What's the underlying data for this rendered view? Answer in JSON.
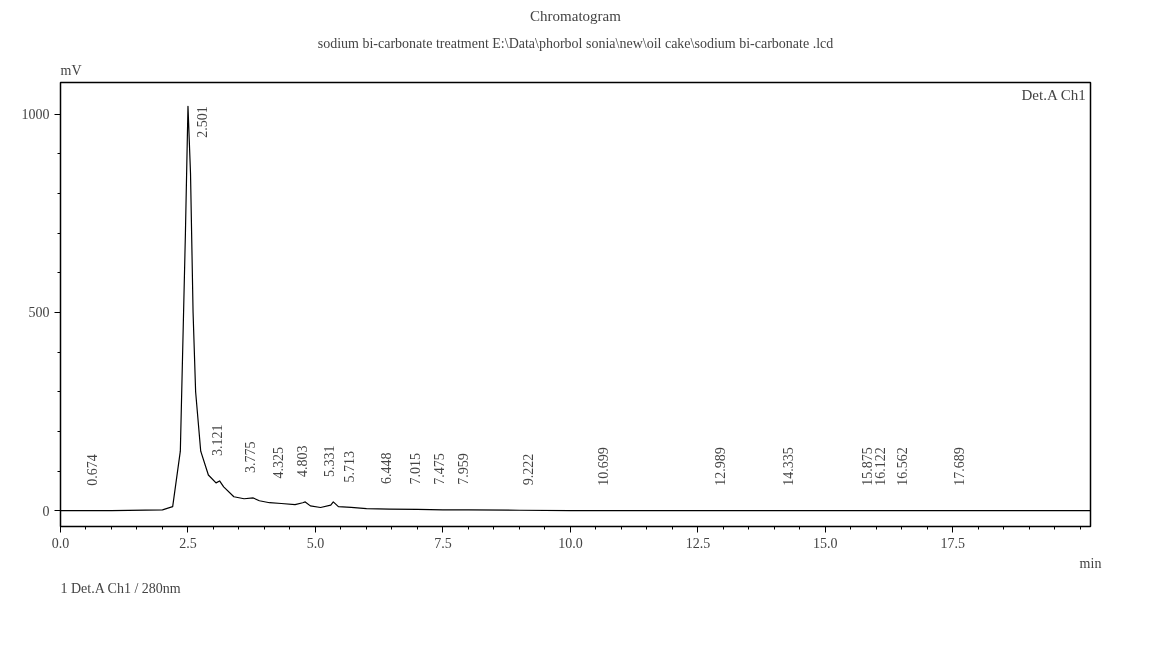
{
  "chart_data": {
    "type": "line",
    "title": "Chromatogram",
    "subtitle": "sodium bi-carbonate treatment E:\\Data\\phorbol sonia\\new\\oil cake\\sodium bi-carbonate .lcd",
    "xlabel": "min",
    "ylabel": "mV",
    "xlim": [
      0,
      20.2
    ],
    "xticks": [
      {
        "value": 0,
        "label": "0.0"
      },
      2.5,
      {
        "value": 5,
        "label": "5.0"
      },
      7.5,
      {
        "value": 10,
        "label": "10.0"
      },
      12.5,
      {
        "value": 15,
        "label": "15.0"
      },
      17.5
    ],
    "ylim": [
      -40,
      1080
    ],
    "yticks": [
      0,
      500,
      1000
    ],
    "grid": false,
    "marker": "none",
    "line_style": "solid",
    "series": [
      {
        "color": "#000000",
        "x": [
          0,
          1.0,
          2.0,
          2.2,
          2.35,
          2.45,
          2.5,
          2.55,
          2.6,
          2.65,
          2.75,
          2.9,
          3.05,
          3.12,
          3.2,
          3.4,
          3.6,
          3.78,
          3.9,
          4.1,
          4.33,
          4.6,
          4.75,
          4.8,
          4.9,
          5.1,
          5.3,
          5.35,
          5.45,
          5.7,
          6.0,
          6.45,
          7.0,
          7.5,
          8.0,
          9.0,
          10.0,
          12.0,
          15.0,
          18.0,
          20.2
        ],
        "values": [
          0,
          0,
          2,
          10,
          150,
          700,
          1020,
          850,
          500,
          300,
          150,
          90,
          70,
          75,
          60,
          35,
          30,
          32,
          25,
          20,
          18,
          15,
          20,
          22,
          12,
          8,
          14,
          22,
          10,
          8,
          5,
          4,
          3,
          2,
          2,
          1,
          0,
          0,
          0,
          0,
          0
        ]
      }
    ],
    "annotations": [
      "Det.A Ch1",
      "1  Det.A Ch1 / 280nm",
      {
        "text": "0.674",
        "x": 0.674,
        "y": 0
      },
      {
        "text": "2.501",
        "x": 2.501,
        "y": 1020
      },
      {
        "text": "3.121",
        "x": 3.121,
        "y": 75
      },
      {
        "text": "3.775",
        "x": 3.775,
        "y": 32
      },
      {
        "text": "4.325",
        "x": 4.325,
        "y": 18
      },
      {
        "text": "4.803",
        "x": 4.803,
        "y": 22
      },
      {
        "text": "5.331",
        "x": 5.331,
        "y": 22
      },
      {
        "text": "5.713",
        "x": 5.713,
        "y": 8
      },
      {
        "text": "6.448",
        "x": 6.448,
        "y": 4
      },
      {
        "text": "7.015",
        "x": 7.015,
        "y": 3
      },
      {
        "text": "7.475",
        "x": 7.475,
        "y": 2
      },
      {
        "text": "7.959",
        "x": 7.959,
        "y": 2
      },
      {
        "text": "9.222",
        "x": 9.222,
        "y": 1
      },
      {
        "text": "10.699",
        "x": 10.699,
        "y": 0
      },
      {
        "text": "12.989",
        "x": 12.989,
        "y": 0
      },
      {
        "text": "14.335",
        "x": 14.335,
        "y": 0
      },
      {
        "text": "15.875",
        "x": 15.875,
        "y": 0
      },
      {
        "text": "16.122",
        "x": 16.122,
        "y": 0
      },
      {
        "text": "16.562",
        "x": 16.562,
        "y": 0
      },
      {
        "text": "17.689",
        "x": 17.689,
        "y": 0
      }
    ]
  }
}
